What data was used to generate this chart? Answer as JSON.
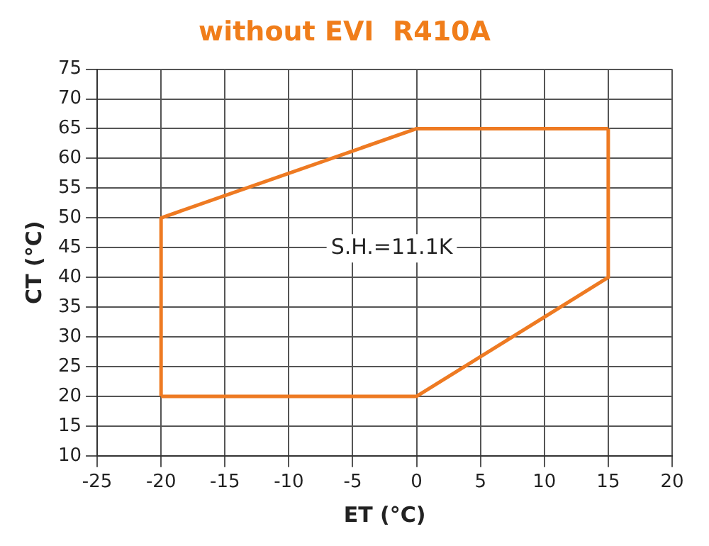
{
  "chart_data": {
    "type": "line",
    "title": "without EVI  R410A",
    "xlabel": "ET (°C)",
    "ylabel": "CT (°C)",
    "series": [
      {
        "x": [
          -20,
          0,
          15,
          15
        ],
        "values": [
          20,
          20,
          40,
          65
        ],
        "color": "#ee7a22"
      },
      {
        "x": [
          -20,
          -20,
          0,
          15
        ],
        "values": [
          20,
          50,
          65,
          65
        ],
        "color": "#ee7a22"
      }
    ],
    "xlim": [
      -25,
      20
    ],
    "xticks": [
      -25,
      -20,
      -15,
      -10,
      -5,
      0,
      5,
      10,
      15,
      20
    ],
    "ylim": [
      10,
      75
    ],
    "yticks": [
      10,
      15,
      20,
      25,
      30,
      35,
      40,
      45,
      50,
      55,
      60,
      65,
      70,
      75
    ],
    "grid": true,
    "legend": false,
    "marker": "none",
    "line_style": "solid",
    "annotations": [
      "S.H.=11.1K"
    ]
  }
}
